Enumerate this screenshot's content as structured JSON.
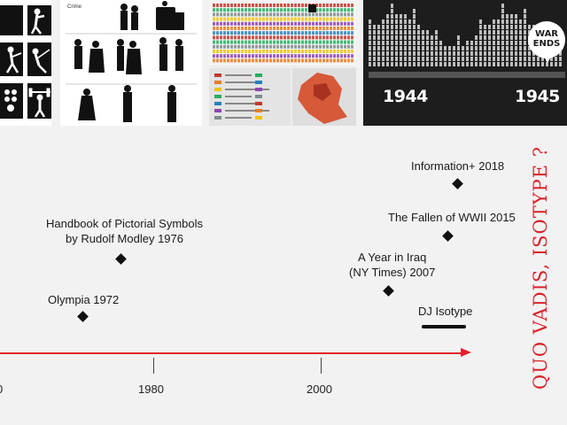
{
  "thumbnails": {
    "olympia": {
      "icons": [
        "boxing-pictogram",
        "fencing-pictogram",
        "basketball-pictogram",
        "weightlifting-pictogram"
      ]
    },
    "modley": {
      "caption": "Crime"
    },
    "iraq": {
      "legend_colors": [
        "#c0392b",
        "#e67e22",
        "#f1c40f",
        "#27ae60",
        "#2980b9",
        "#8e44ad",
        "#7f8c8d"
      ]
    },
    "fallen": {
      "year_start": "1944",
      "year_end": "1945",
      "badge_line1": "WAR",
      "badge_line2": "ENDS"
    }
  },
  "timeline": {
    "events": [
      {
        "id": "olympia",
        "line1": "Olympia 1972",
        "line2": ""
      },
      {
        "id": "modley",
        "line1": "Handbook of Pictorial Symbols",
        "line2": "by Rudolf Modley 1976"
      },
      {
        "id": "iraq",
        "line1": "A Year in Iraq",
        "line2": "(NY Times) 2007"
      },
      {
        "id": "fallen",
        "line1": "The Fallen of WWII 2015",
        "line2": ""
      },
      {
        "id": "information",
        "line1": "Information+ 2018",
        "line2": ""
      },
      {
        "id": "dj",
        "line1": "DJ Isotype",
        "line2": ""
      }
    ],
    "axis_labels": {
      "left": "0",
      "mid": "1980",
      "right": "2000"
    },
    "axis_color": "#e0202a"
  },
  "side_title": "QUO VADIS, ISOTYPE ?",
  "accent_color": "#d8232a"
}
